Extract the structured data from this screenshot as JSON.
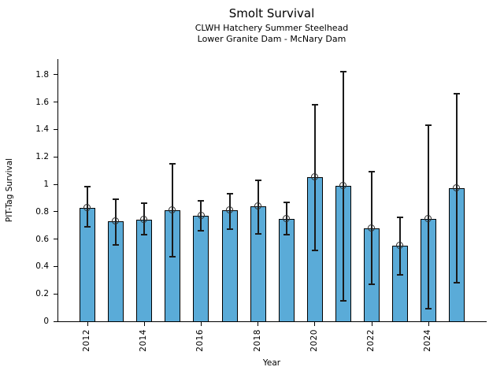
{
  "figure": {
    "title": "Smolt Survival",
    "subtitle1": "CLWH Hatchery Summer Steelhead",
    "subtitle2": "Lower Granite Dam - McNary Dam"
  },
  "chart_data": {
    "type": "bar",
    "title": "Smolt Survival",
    "subtitles": [
      "CLWH Hatchery Summer Steelhead",
      "Lower Granite Dam - McNary Dam"
    ],
    "xlabel": "Year",
    "ylabel": "PIT-Tag Survival",
    "categories": [
      2012,
      2013,
      2014,
      2015,
      2016,
      2017,
      2018,
      2019,
      2020,
      2021,
      2022,
      2023,
      2024,
      2025
    ],
    "series": [
      {
        "name": "PIT-Tag Survival",
        "values": [
          0.83,
          0.73,
          0.74,
          0.81,
          0.77,
          0.81,
          0.84,
          0.75,
          1.05,
          0.99,
          0.68,
          0.55,
          0.75,
          0.97
        ]
      },
      {
        "name": "CI lower",
        "values": [
          0.69,
          0.56,
          0.63,
          0.47,
          0.66,
          0.67,
          0.64,
          0.63,
          0.52,
          0.15,
          0.27,
          0.34,
          0.09,
          0.28
        ]
      },
      {
        "name": "CI upper",
        "values": [
          0.98,
          0.89,
          0.86,
          1.15,
          0.88,
          0.93,
          1.03,
          0.87,
          1.58,
          1.82,
          1.09,
          0.76,
          1.43,
          1.66
        ]
      }
    ],
    "error_bars": true,
    "marker": "open-circle",
    "ylim": [
      0,
      1.914
    ],
    "yticks": [
      0,
      0.2,
      0.4,
      0.6,
      0.8,
      1,
      1.2,
      1.4,
      1.6,
      1.8
    ],
    "ytick_labels": [
      "0",
      "0.2",
      "0.4",
      "0.6",
      "0.8",
      "1",
      "1.2",
      "1.4",
      "1.6",
      "1.8"
    ],
    "xtick_labels": [
      "2012",
      "2014",
      "2016",
      "2018",
      "2020",
      "2022",
      "2024"
    ],
    "grid": false,
    "legend": false,
    "bar_color": "#5aabd8",
    "bar_edge_color": "#000000",
    "error_color": "#1a1a1a"
  }
}
